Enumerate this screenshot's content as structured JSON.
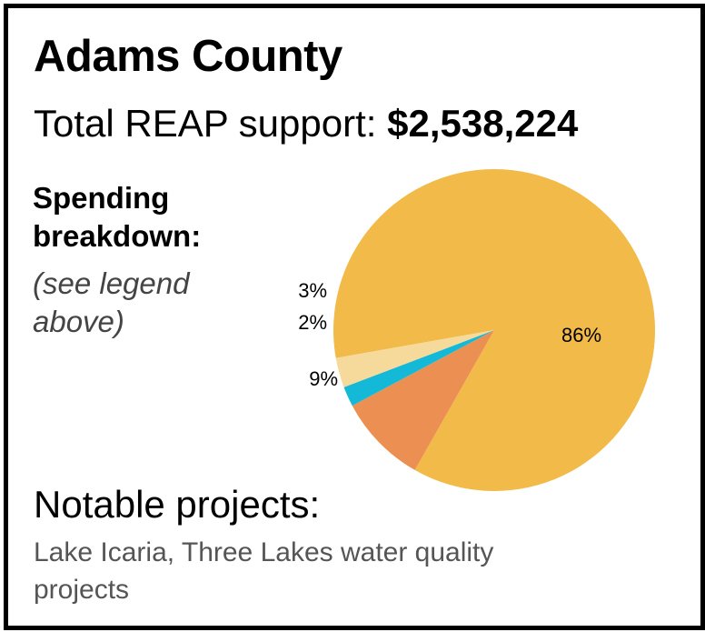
{
  "header": {
    "county": "Adams County",
    "total_label": "Total REAP support:",
    "total_amount": "$2,538,224"
  },
  "breakdown": {
    "heading": "Spending breakdown:",
    "note": "(see legend above)"
  },
  "projects": {
    "heading": "Notable projects:",
    "text": "Lake Icaria, Three Lakes water quality projects"
  },
  "chart_data": {
    "type": "pie",
    "title": "",
    "slices": [
      {
        "label": "86%",
        "value": 86,
        "color": "#F2BA48"
      },
      {
        "label": "9%",
        "value": 9,
        "color": "#EC8F52"
      },
      {
        "label": "2%",
        "value": 2,
        "color": "#13B9D6"
      },
      {
        "label": "3%",
        "value": 3,
        "color": "#F6DA9C"
      }
    ]
  }
}
